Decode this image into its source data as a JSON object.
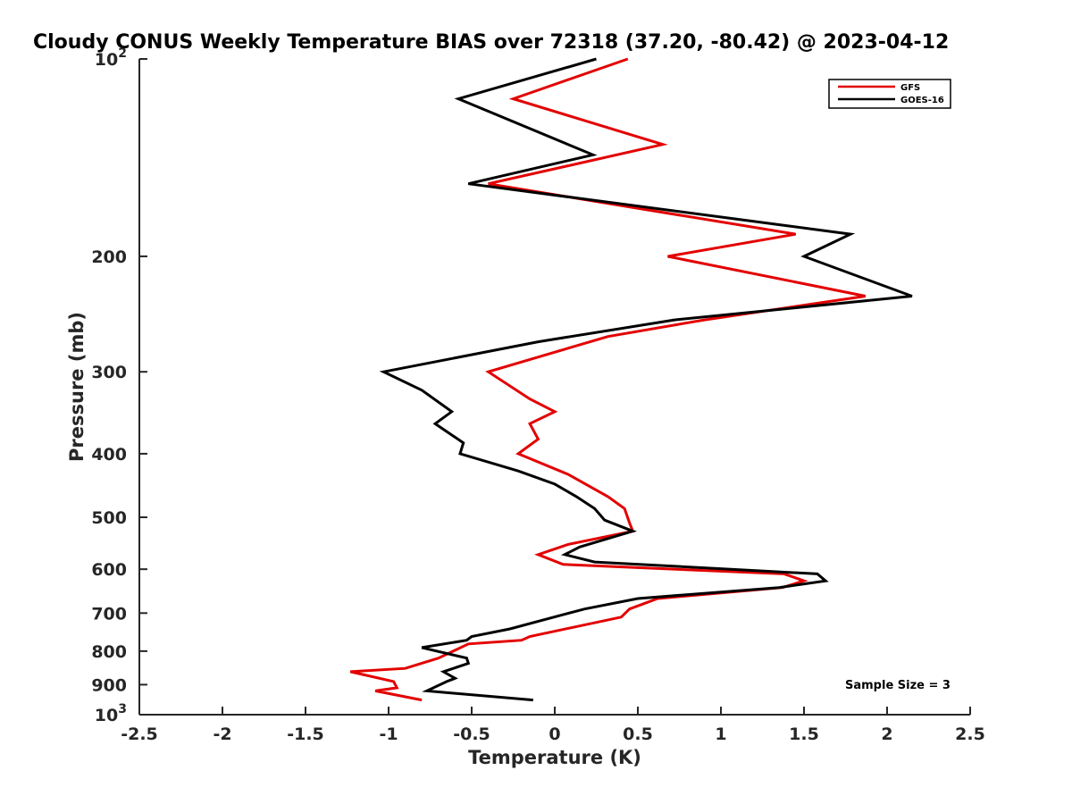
{
  "chart_data": {
    "type": "line",
    "title": "Cloudy CONUS Weekly Temperature BIAS over 72318 (37.20, -80.42) @ 2023-04-12",
    "xlabel": "Temperature (K)",
    "ylabel": "Pressure (mb)",
    "xlim": [
      -2.5,
      2.5
    ],
    "ylim": [
      1000,
      100
    ],
    "yscale": "log",
    "y_reversed": true,
    "grid": false,
    "legend_position": "top-right",
    "annotation": "Sample Size = 3",
    "x_ticks": [
      "-2.5",
      "-2",
      "-1.5",
      "-1",
      "-0.5",
      "0",
      "0.5",
      "1",
      "1.5",
      "2",
      "2.5"
    ],
    "y_ticks": [
      {
        "value": 100,
        "base": "10",
        "exp": "2"
      },
      {
        "value": 200,
        "label": "200"
      },
      {
        "value": 300,
        "label": "300"
      },
      {
        "value": 400,
        "label": "400"
      },
      {
        "value": 500,
        "label": "500"
      },
      {
        "value": 600,
        "label": "600"
      },
      {
        "value": 700,
        "label": "700"
      },
      {
        "value": 800,
        "label": "800"
      },
      {
        "value": 900,
        "label": "900"
      },
      {
        "value": 1000,
        "base": "10",
        "exp": "3"
      }
    ],
    "series": [
      {
        "name": "GFS",
        "color": "#e30000",
        "points": [
          [
            0.44,
            100
          ],
          [
            -0.25,
            115
          ],
          [
            0.65,
            135
          ],
          [
            -0.4,
            155
          ],
          [
            1.45,
            185
          ],
          [
            0.68,
            200
          ],
          [
            1.87,
            230
          ],
          [
            0.9,
            250
          ],
          [
            0.32,
            265
          ],
          [
            -0.4,
            300
          ],
          [
            -0.15,
            330
          ],
          [
            0.0,
            345
          ],
          [
            -0.15,
            360
          ],
          [
            -0.1,
            380
          ],
          [
            -0.22,
            400
          ],
          [
            0.08,
            430
          ],
          [
            0.32,
            465
          ],
          [
            0.42,
            485
          ],
          [
            0.45,
            510
          ],
          [
            0.47,
            525
          ],
          [
            0.08,
            550
          ],
          [
            -0.1,
            570
          ],
          [
            0.05,
            590
          ],
          [
            1.38,
            610
          ],
          [
            1.5,
            625
          ],
          [
            1.37,
            640
          ],
          [
            0.62,
            665
          ],
          [
            0.45,
            690
          ],
          [
            0.4,
            710
          ],
          [
            -0.15,
            760
          ],
          [
            -0.2,
            770
          ],
          [
            -0.52,
            780
          ],
          [
            -0.7,
            820
          ],
          [
            -0.9,
            850
          ],
          [
            -1.23,
            860
          ],
          [
            -0.97,
            890
          ],
          [
            -0.95,
            910
          ],
          [
            -1.08,
            920
          ],
          [
            -0.8,
            950
          ]
        ]
      },
      {
        "name": "GOES-16",
        "color": "#000000",
        "points": [
          [
            0.25,
            100
          ],
          [
            -0.58,
            115
          ],
          [
            0.23,
            140
          ],
          [
            -0.52,
            155
          ],
          [
            1.78,
            185
          ],
          [
            1.5,
            200
          ],
          [
            2.15,
            230
          ],
          [
            0.72,
            250
          ],
          [
            -0.1,
            270
          ],
          [
            -1.03,
            300
          ],
          [
            -0.8,
            320
          ],
          [
            -0.62,
            345
          ],
          [
            -0.72,
            360
          ],
          [
            -0.55,
            385
          ],
          [
            -0.57,
            400
          ],
          [
            -0.22,
            425
          ],
          [
            0.0,
            445
          ],
          [
            0.13,
            465
          ],
          [
            0.24,
            485
          ],
          [
            0.3,
            505
          ],
          [
            0.47,
            525
          ],
          [
            0.15,
            555
          ],
          [
            0.06,
            570
          ],
          [
            0.24,
            585
          ],
          [
            1.58,
            610
          ],
          [
            1.63,
            625
          ],
          [
            1.35,
            640
          ],
          [
            0.5,
            665
          ],
          [
            0.18,
            690
          ],
          [
            0.04,
            705
          ],
          [
            -0.27,
            740
          ],
          [
            -0.5,
            760
          ],
          [
            -0.53,
            770
          ],
          [
            -0.8,
            790
          ],
          [
            -0.53,
            820
          ],
          [
            -0.52,
            835
          ],
          [
            -0.67,
            860
          ],
          [
            -0.6,
            880
          ],
          [
            -0.65,
            890
          ],
          [
            -0.77,
            920
          ],
          [
            -0.13,
            950
          ]
        ]
      }
    ]
  }
}
